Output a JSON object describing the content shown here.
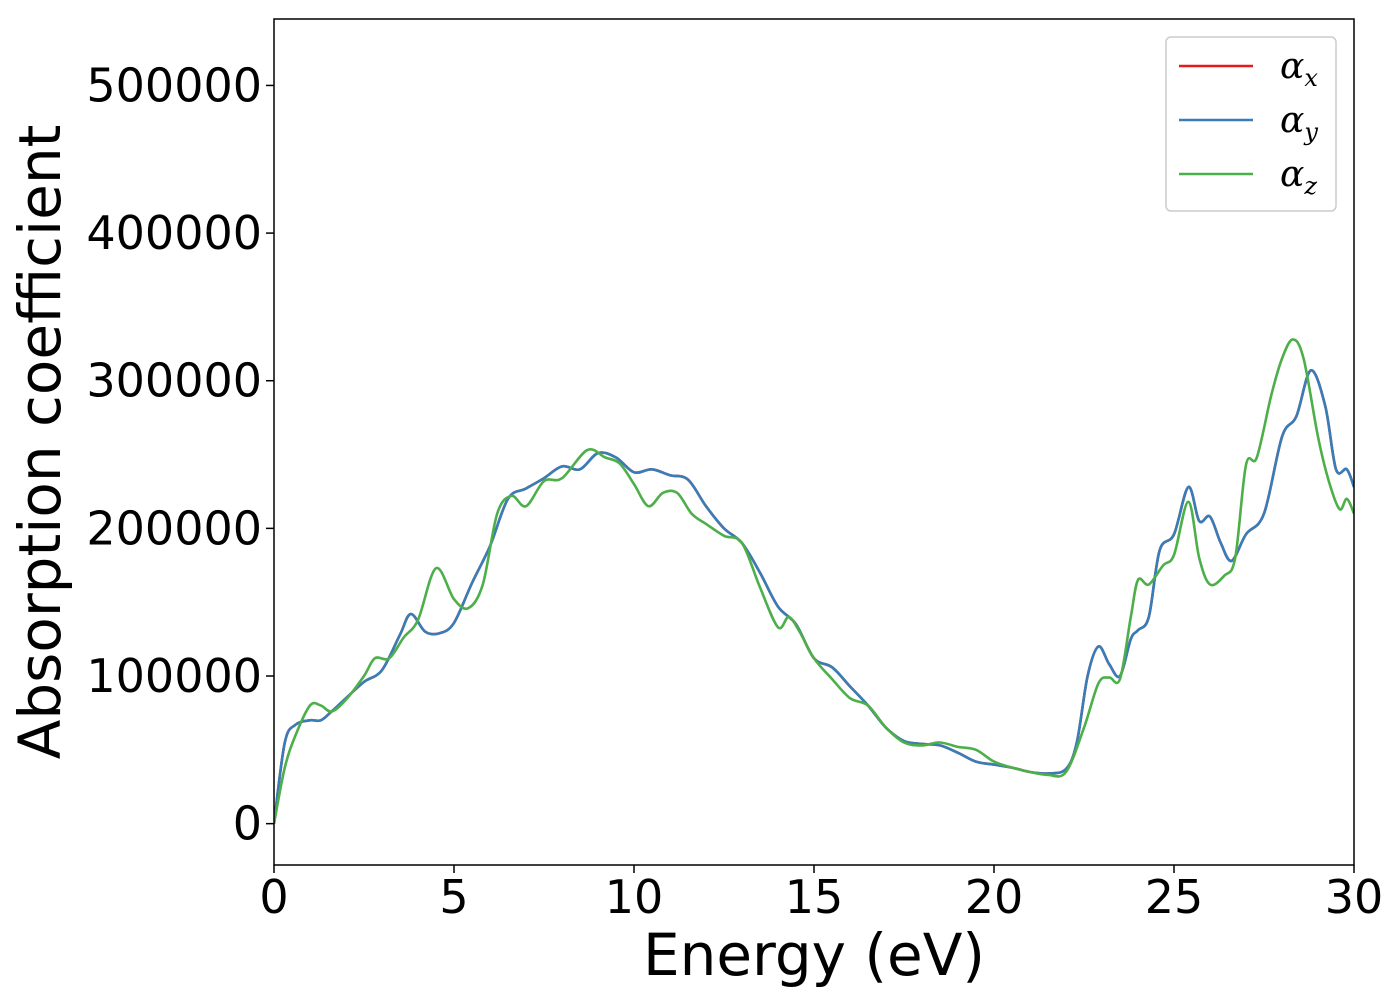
{
  "chart_data": {
    "type": "line",
    "xlabel": "Energy (eV)",
    "ylabel": "Absorption coefficient",
    "xlim": [
      0,
      30
    ],
    "ylim": [
      -28000,
      545000
    ],
    "xticks": [
      0,
      5,
      10,
      15,
      20,
      25,
      30
    ],
    "yticks": [
      0,
      100000,
      200000,
      300000,
      400000,
      500000
    ],
    "grid": false,
    "legend": "top-right",
    "series": [
      {
        "name": "α",
        "subscript": "x",
        "color": "#e41a1c",
        "x": [
          0,
          0.3,
          0.6,
          1.0,
          1.3,
          1.6,
          2.0,
          2.5,
          3.0,
          3.5,
          3.8,
          4.2,
          4.6,
          5.0,
          5.5,
          6.0,
          6.5,
          7.0,
          7.5,
          8.0,
          8.5,
          9.0,
          9.5,
          10.0,
          10.5,
          11.0,
          11.5,
          12.0,
          12.5,
          13.0,
          13.5,
          14.0,
          14.5,
          15.0,
          15.5,
          16.0,
          16.5,
          17.0,
          17.5,
          18.0,
          18.5,
          19.0,
          19.5,
          20.0,
          20.5,
          21.0,
          21.5,
          22.0,
          22.3,
          22.6,
          22.9,
          23.2,
          23.5,
          23.8,
          24.0,
          24.3,
          24.6,
          25.0,
          25.4,
          25.7,
          26.0,
          26.3,
          26.6,
          27.0,
          27.5,
          28.0,
          28.4,
          28.8,
          29.2,
          29.5,
          29.8,
          30.0
        ],
        "y": [
          0,
          55000,
          67000,
          70000,
          70000,
          76000,
          85000,
          96000,
          104000,
          128000,
          142000,
          130000,
          129000,
          136000,
          163000,
          188000,
          220000,
          227000,
          234000,
          242000,
          240000,
          251000,
          248000,
          238000,
          240000,
          236000,
          233000,
          215000,
          200000,
          190000,
          170000,
          147000,
          135000,
          112000,
          106000,
          93000,
          80000,
          65000,
          56000,
          54000,
          53000,
          48000,
          42000,
          40000,
          38000,
          35000,
          34000,
          37000,
          55000,
          100000,
          120000,
          108000,
          100000,
          125000,
          131000,
          140000,
          185000,
          196000,
          228000,
          205000,
          208000,
          190000,
          178000,
          196000,
          210000,
          262000,
          276000,
          307000,
          283000,
          240000,
          240000,
          228000
        ]
      },
      {
        "name": "α",
        "subscript": "y",
        "color": "#377eb8",
        "x": [
          0,
          0.3,
          0.6,
          1.0,
          1.3,
          1.6,
          2.0,
          2.5,
          3.0,
          3.5,
          3.8,
          4.2,
          4.6,
          5.0,
          5.5,
          6.0,
          6.5,
          7.0,
          7.5,
          8.0,
          8.5,
          9.0,
          9.5,
          10.0,
          10.5,
          11.0,
          11.5,
          12.0,
          12.5,
          13.0,
          13.5,
          14.0,
          14.5,
          15.0,
          15.5,
          16.0,
          16.5,
          17.0,
          17.5,
          18.0,
          18.5,
          19.0,
          19.5,
          20.0,
          20.5,
          21.0,
          21.5,
          22.0,
          22.3,
          22.6,
          22.9,
          23.2,
          23.5,
          23.8,
          24.0,
          24.3,
          24.6,
          25.0,
          25.4,
          25.7,
          26.0,
          26.3,
          26.6,
          27.0,
          27.5,
          28.0,
          28.4,
          28.8,
          29.2,
          29.5,
          29.8,
          30.0
        ],
        "y": [
          0,
          55000,
          67000,
          70000,
          70000,
          76000,
          85000,
          96000,
          104000,
          128000,
          142000,
          130000,
          129000,
          136000,
          163000,
          188000,
          220000,
          227000,
          234000,
          242000,
          240000,
          251000,
          248000,
          238000,
          240000,
          236000,
          233000,
          215000,
          200000,
          190000,
          170000,
          147000,
          135000,
          112000,
          106000,
          93000,
          80000,
          65000,
          56000,
          54000,
          53000,
          48000,
          42000,
          40000,
          38000,
          35000,
          34000,
          37000,
          55000,
          100000,
          120000,
          108000,
          100000,
          125000,
          131000,
          140000,
          185000,
          196000,
          228000,
          205000,
          208000,
          190000,
          178000,
          196000,
          210000,
          262000,
          276000,
          307000,
          283000,
          240000,
          240000,
          228000
        ]
      },
      {
        "name": "α",
        "subscript": "z",
        "color": "#4daf4a",
        "x": [
          0,
          0.3,
          0.6,
          1.0,
          1.3,
          1.6,
          2.0,
          2.5,
          2.8,
          3.2,
          3.6,
          4.0,
          4.5,
          5.0,
          5.4,
          5.8,
          6.2,
          6.6,
          7.0,
          7.5,
          8.0,
          8.7,
          9.2,
          9.6,
          10.0,
          10.4,
          10.8,
          11.2,
          11.6,
          12.0,
          12.5,
          13.0,
          13.5,
          14.0,
          14.3,
          14.6,
          15.0,
          15.5,
          16.0,
          16.5,
          17.0,
          17.5,
          18.0,
          18.5,
          19.0,
          19.5,
          20.0,
          20.5,
          21.0,
          21.5,
          22.0,
          22.5,
          22.9,
          23.2,
          23.5,
          23.8,
          24.0,
          24.3,
          24.7,
          25.0,
          25.4,
          25.7,
          26.0,
          26.4,
          26.7,
          27.0,
          27.3,
          27.7,
          28.0,
          28.3,
          28.6,
          29.0,
          29.3,
          29.6,
          29.8,
          30.0
        ],
        "y": [
          0,
          38000,
          60000,
          80000,
          80000,
          76000,
          84000,
          100000,
          112000,
          112000,
          126000,
          138000,
          173000,
          152000,
          146000,
          162000,
          210000,
          222000,
          215000,
          232000,
          234000,
          253000,
          248000,
          244000,
          230000,
          215000,
          224000,
          224000,
          210000,
          203000,
          195000,
          190000,
          160000,
          133000,
          140000,
          130000,
          112000,
          98000,
          85000,
          80000,
          65000,
          55000,
          53000,
          55000,
          52000,
          50000,
          42000,
          38000,
          35000,
          33000,
          35000,
          65000,
          95000,
          99000,
          98000,
          140000,
          165000,
          162000,
          175000,
          182000,
          218000,
          180000,
          162000,
          168000,
          180000,
          243000,
          248000,
          290000,
          315000,
          328000,
          315000,
          262000,
          232000,
          213000,
          220000,
          210000
        ]
      }
    ]
  }
}
